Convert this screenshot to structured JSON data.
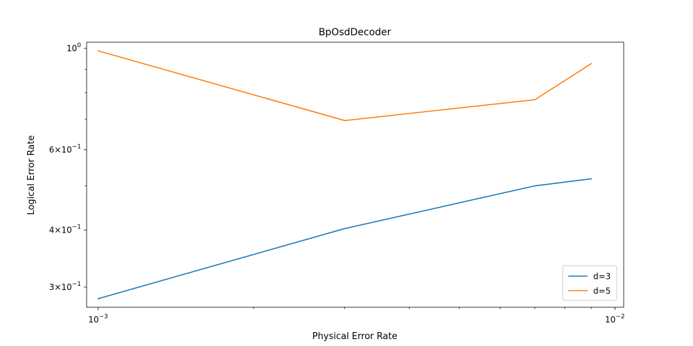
{
  "chart_data": {
    "type": "line",
    "title": "BpOsdDecoder",
    "xlabel": "Physical Error Rate",
    "ylabel": "Logical Error Rate",
    "xscale": "log",
    "yscale": "log",
    "xlim": [
      0.00095,
      0.0104
    ],
    "ylim": [
      0.271,
      1.032
    ],
    "grid": false,
    "legend_position": "lower-right",
    "x": [
      0.001,
      0.003,
      0.007,
      0.009
    ],
    "series": [
      {
        "name": "d=3",
        "color": "#1f77b4",
        "values": [
          0.283,
          0.403,
          0.5,
          0.518
        ]
      },
      {
        "name": "d=5",
        "color": "#ff7f0e",
        "values": [
          0.988,
          0.695,
          0.772,
          0.926
        ]
      }
    ],
    "x_ticks": [
      {
        "value": 0.001,
        "base": "10",
        "exp": "−3"
      },
      {
        "value": 0.01,
        "base": "10",
        "exp": "−2"
      }
    ],
    "y_ticks": [
      {
        "value": 1.0,
        "mant": "",
        "base": "10",
        "exp": "0"
      },
      {
        "value": 0.6,
        "mant": "6×",
        "base": "10",
        "exp": "−1"
      },
      {
        "value": 0.4,
        "mant": "4×",
        "base": "10",
        "exp": "−1"
      },
      {
        "value": 0.3,
        "mant": "3×",
        "base": "10",
        "exp": "−1"
      }
    ]
  }
}
